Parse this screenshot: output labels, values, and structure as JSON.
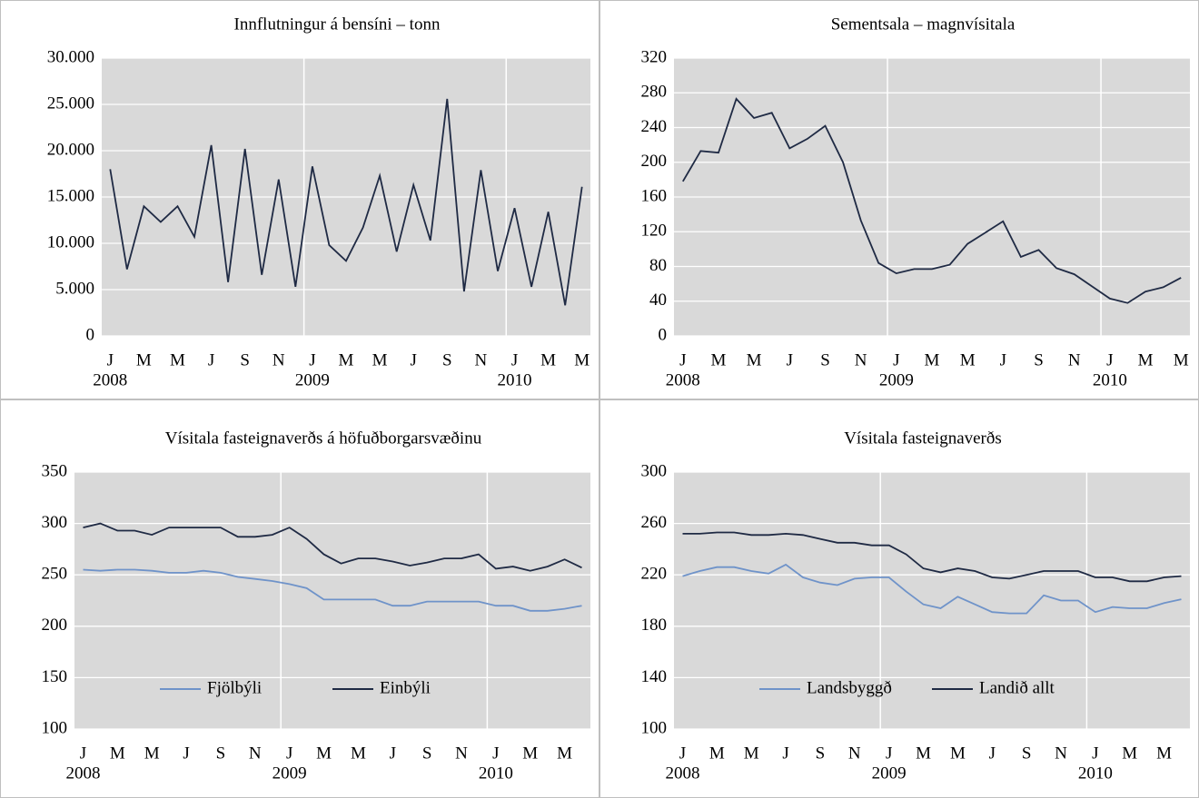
{
  "chart_data": [
    {
      "type": "line",
      "title": "Innflutningur á bensíni – tonn",
      "categories": [
        "J",
        null,
        "M",
        null,
        "M",
        null,
        "J",
        null,
        "S",
        null,
        "N",
        null,
        "J",
        null,
        "M",
        null,
        "M",
        null,
        "J",
        null,
        "S",
        null,
        "N",
        null,
        "J",
        null,
        "M",
        null,
        "M"
      ],
      "years": [
        "2008",
        "2009",
        "2010"
      ],
      "values": [
        18000,
        7200,
        14000,
        12300,
        14000,
        10700,
        20600,
        5800,
        20200,
        6600,
        16900,
        5300,
        18300,
        9800,
        8100,
        11700,
        17300,
        9100,
        16300,
        10300,
        25600,
        4800,
        17900,
        7000,
        13800,
        5300,
        13400,
        3300,
        16100
      ],
      "color": "#1f2a44",
      "ylim": [
        0,
        30000
      ],
      "yticks": [
        0,
        {
          "value": 5000,
          "label": "5.000"
        },
        {
          "value": 10000,
          "label": "10.000"
        },
        {
          "value": 15000,
          "label": "15.000"
        },
        {
          "value": 20000,
          "label": "20.000"
        },
        {
          "value": 25000,
          "label": "25.000"
        },
        {
          "value": 30000,
          "label": "30.000"
        }
      ],
      "grid": true
    },
    {
      "type": "line",
      "title": "Sementsala – magnvísitala",
      "categories": [
        "J",
        null,
        "M",
        null,
        "M",
        null,
        "J",
        null,
        "S",
        null,
        "N",
        null,
        "J",
        null,
        "M",
        null,
        "M",
        null,
        "J",
        null,
        "S",
        null,
        "N",
        null,
        "J",
        null,
        "M",
        null,
        "M"
      ],
      "years": [
        "2008",
        "2009",
        "2010"
      ],
      "values": [
        178,
        213,
        211,
        273,
        251,
        257,
        216,
        227,
        242,
        200,
        133,
        84,
        72,
        77,
        77,
        82,
        106,
        119,
        132,
        91,
        99,
        78,
        71,
        57,
        43,
        38,
        51,
        56,
        67
      ],
      "color": "#1f2a44",
      "ylim": [
        0,
        320
      ],
      "yticks": [
        0,
        40,
        80,
        120,
        160,
        200,
        240,
        280,
        320
      ],
      "grid": true
    },
    {
      "type": "line",
      "title": "Vísitala fasteignaverðs  á höfuðborgarsvæðinu",
      "categories": [
        "J",
        null,
        "M",
        null,
        "M",
        null,
        "J",
        null,
        "S",
        null,
        "N",
        null,
        "J",
        null,
        "M",
        null,
        "M",
        null,
        "J",
        null,
        "S",
        null,
        "N",
        null,
        "J",
        null,
        "M",
        null,
        "M",
        null
      ],
      "years": [
        "2008",
        "2009",
        "2010"
      ],
      "series": [
        {
          "name": "Fjölbýli",
          "color": "#6f93c9",
          "values": [
            255,
            254,
            255,
            255,
            254,
            252,
            252,
            254,
            252,
            248,
            246,
            244,
            241,
            237,
            226,
            226,
            226,
            226,
            220,
            220,
            224,
            224,
            224,
            224,
            220,
            220,
            215,
            215,
            217,
            220
          ]
        },
        {
          "name": "Einbýli",
          "color": "#1f2a44",
          "values": [
            296,
            300,
            293,
            293,
            289,
            296,
            296,
            296,
            296,
            287,
            287,
            289,
            296,
            285,
            270,
            261,
            266,
            266,
            263,
            259,
            262,
            266,
            266,
            270,
            256,
            258,
            254,
            258,
            265,
            257
          ]
        }
      ],
      "ylim": [
        100,
        350
      ],
      "yticks": [
        100,
        150,
        200,
        250,
        300,
        350
      ],
      "grid": true,
      "legend": "lower center"
    },
    {
      "type": "line",
      "title": "Vísitala fasteignaverðs",
      "categories": [
        "J",
        null,
        "M",
        null,
        "M",
        null,
        "J",
        null,
        "S",
        null,
        "N",
        null,
        "J",
        null,
        "M",
        null,
        "M",
        null,
        "J",
        null,
        "S",
        null,
        "N",
        null,
        "J",
        null,
        "M",
        null,
        "M",
        null
      ],
      "years": [
        "2008",
        "2009",
        "2010"
      ],
      "series": [
        {
          "name": "Landsbyggð",
          "color": "#6f93c9",
          "values": [
            219,
            223,
            226,
            226,
            223,
            221,
            228,
            218,
            214,
            212,
            217,
            218,
            218,
            207,
            197,
            194,
            203,
            197,
            191,
            190,
            190,
            204,
            200,
            200,
            191,
            195,
            194,
            194,
            198,
            201
          ]
        },
        {
          "name": "Landið allt",
          "color": "#1f2a44",
          "values": [
            252,
            252,
            253,
            253,
            251,
            251,
            252,
            251,
            248,
            245,
            245,
            243,
            243,
            236,
            225,
            222,
            225,
            223,
            218,
            217,
            220,
            223,
            223,
            223,
            218,
            218,
            215,
            215,
            218,
            219
          ]
        }
      ],
      "ylim": [
        100,
        300
      ],
      "yticks": [
        100,
        140,
        180,
        220,
        260,
        300
      ],
      "grid": true,
      "legend": "lower center"
    }
  ]
}
